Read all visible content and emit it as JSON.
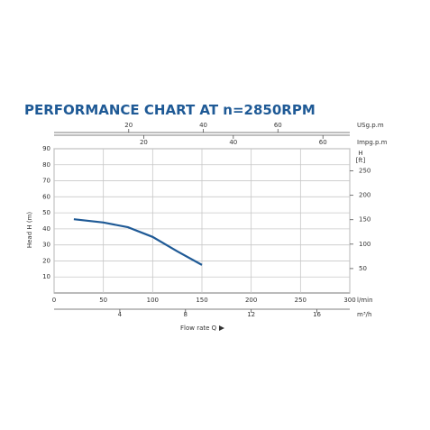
{
  "chart_data": {
    "type": "line",
    "title": "PERFORMANCE CHART AT n=2850RPM",
    "xlabel": "Flow rate Q",
    "ylabel": "Head H (m)",
    "xunit": "l/min",
    "xlim": [
      0,
      300
    ],
    "xticks": [
      0,
      50,
      100,
      150,
      200,
      250,
      300
    ],
    "ylim": [
      0,
      90
    ],
    "yticks": [
      10,
      20,
      30,
      40,
      50,
      60,
      70,
      80,
      90
    ],
    "y2label": "H",
    "y2unit": "[ft]",
    "y2lim": [
      0,
      295.3
    ],
    "y2ticks": [
      50,
      100,
      150,
      200,
      250
    ],
    "extra_x_axes": [
      {
        "label": "USg.p.m",
        "lim": [
          0,
          79.26
        ],
        "ticks": [
          20,
          40,
          60
        ]
      },
      {
        "label": "Impg.p.m",
        "lim": [
          0,
          65.99
        ],
        "ticks": [
          20,
          40,
          60
        ]
      },
      {
        "label": "m³/h",
        "lim": [
          0,
          18
        ],
        "ticks": [
          4,
          8,
          12,
          16
        ]
      }
    ],
    "grid": true,
    "series": [
      {
        "name": "Head",
        "color": "#1f5a96",
        "x": [
          20,
          50,
          75,
          100,
          125,
          150
        ],
        "values": [
          46,
          44,
          41,
          35,
          26,
          17.5
        ]
      }
    ]
  }
}
